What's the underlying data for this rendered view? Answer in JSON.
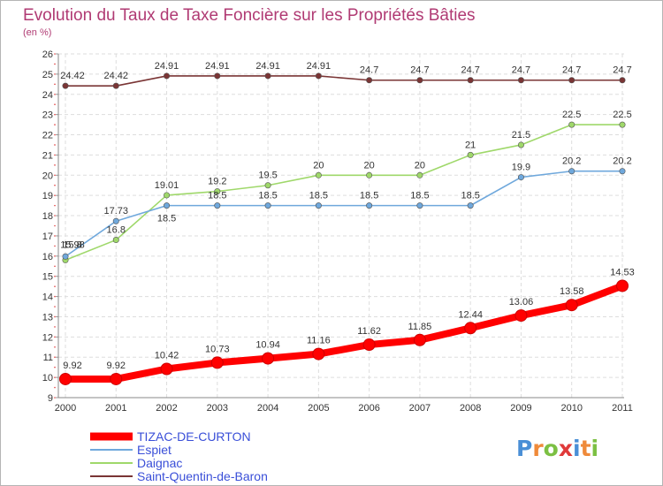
{
  "chart_data": {
    "type": "line",
    "title": "Evolution du Taux de Taxe Foncière sur les Propriétés Bâties",
    "subtitle": "(en %)",
    "xlabel": "",
    "ylabel": "",
    "x": [
      "2000",
      "2001",
      "2002",
      "2003",
      "2004",
      "2005",
      "2006",
      "2007",
      "2008",
      "2009",
      "2010",
      "2011"
    ],
    "ylim": [
      9,
      26
    ],
    "yticks": [
      "9",
      "10",
      "11",
      "12",
      "13",
      "14",
      "15",
      "16",
      "17",
      "18",
      "19",
      "20",
      "21",
      "22",
      "23",
      "24",
      "25",
      "26"
    ],
    "grid": true,
    "legend_position": "bottom-left",
    "series": [
      {
        "name": "TIZAC-DE-CURTON",
        "color": "#ff0000",
        "values": [
          9.92,
          9.92,
          10.42,
          10.73,
          10.94,
          11.16,
          11.62,
          11.85,
          12.44,
          13.06,
          13.58,
          14.53
        ],
        "labels": [
          "9.92",
          "9.92",
          "10.42",
          "10.73",
          "10.94",
          "11.16",
          "11.62",
          "11.85",
          "12.44",
          "13.06",
          "13.58",
          "14.53"
        ]
      },
      {
        "name": "Espiet",
        "color": "#6fa8dc",
        "values": [
          15.98,
          17.73,
          18.5,
          18.5,
          18.5,
          18.5,
          18.5,
          18.5,
          18.5,
          19.9,
          20.2,
          20.2
        ],
        "labels": [
          "15.98",
          "17.73",
          "18.5",
          "18.5",
          "18.5",
          "18.5",
          "18.5",
          "18.5",
          "18.5",
          "19.9",
          "20.2",
          "20.2"
        ]
      },
      {
        "name": "Daignac",
        "color": "#9fd86a",
        "values": [
          15.8,
          16.8,
          19.01,
          19.2,
          19.5,
          20,
          20,
          20,
          21,
          21.5,
          22.5,
          22.5
        ],
        "labels": [
          "15.8",
          "16.8",
          "19.01",
          "19.2",
          "19.5",
          "20",
          "20",
          "20",
          "21",
          "21.5",
          "22.5",
          "22.5"
        ]
      },
      {
        "name": "Saint-Quentin-de-Baron",
        "color": "#7a3535",
        "values": [
          24.42,
          24.42,
          24.91,
          24.91,
          24.91,
          24.91,
          24.7,
          24.7,
          24.7,
          24.7,
          24.7,
          24.7
        ],
        "labels": [
          "24.42",
          "24.42",
          "24.91",
          "24.91",
          "24.91",
          "24.91",
          "24.7",
          "24.7",
          "24.7",
          "24.7",
          "24.7",
          "24.7"
        ]
      }
    ]
  },
  "brand": {
    "letters": [
      "P",
      "r",
      "o",
      "x",
      "i",
      "t",
      "i"
    ],
    "colors": [
      "#4a8fd6",
      "#ef8a3a",
      "#7cc043",
      "#e03a3a",
      "#4a8fd6",
      "#ef8a3a",
      "#7cc043"
    ]
  }
}
